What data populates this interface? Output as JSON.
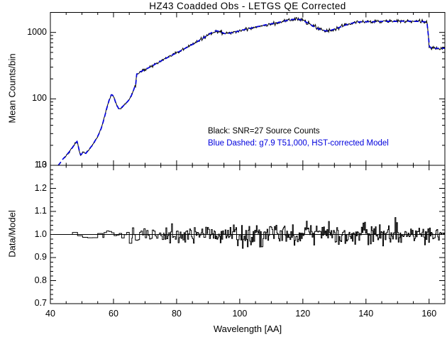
{
  "title": "HZ43 Coadded Obs - LETGS QE Corrected",
  "colors": {
    "data": "#000000",
    "model": "#0000dd",
    "background": "#ffffff",
    "axis": "#000000"
  },
  "chart_data": [
    {
      "type": "line",
      "panel": "spectrum",
      "title": "HZ43 Coadded Obs - LETGS QE Corrected",
      "ylabel": "Mean Counts/bin",
      "xscale": "linear",
      "yscale": "log",
      "xlim": [
        40,
        165
      ],
      "ylim": [
        10,
        2000
      ],
      "xticks": [
        40,
        60,
        80,
        100,
        120,
        140,
        160
      ],
      "xminor_step": 5,
      "yticks": [
        10,
        100,
        1000
      ],
      "ytick_labels": [
        "10",
        "100",
        "1000"
      ],
      "grid": false,
      "legend_position": "inside-lower-right",
      "annotations": [
        {
          "text": "Black: SNR=27 Source Counts",
          "color": "#000000"
        },
        {
          "text": "Blue Dashed: g7.9 T51,000, HST-corrected Model",
          "color": "#0000dd"
        }
      ],
      "series": [
        {
          "name": "SNR=27 source counts",
          "color": "#000000",
          "style": "solid-noisy",
          "x_start": 44.2,
          "x_end": 165,
          "bin_aa": 0.2,
          "noise_sigma_log": [
            [
              55,
              0.006
            ],
            [
              67,
              0.009
            ],
            [
              85,
              0.011
            ],
            [
              165,
              0.014
            ]
          ],
          "noise_seed": 42
        },
        {
          "name": "g7.9 T51,000, HST-corrected model",
          "color": "#0000dd",
          "style": "dashed",
          "x_start": 42.5,
          "x_end": 165
        }
      ],
      "model_points": [
        [
          42.5,
          10
        ],
        [
          43.2,
          11
        ],
        [
          44,
          12.5
        ],
        [
          45,
          14
        ],
        [
          46,
          16
        ],
        [
          47,
          18.5
        ],
        [
          47.9,
          21.5
        ],
        [
          48.5,
          23
        ],
        [
          49.1,
          17
        ],
        [
          49.6,
          14
        ],
        [
          50.4,
          16
        ],
        [
          51.2,
          15
        ],
        [
          52.3,
          17.5
        ],
        [
          53.3,
          20
        ],
        [
          54.3,
          24
        ],
        [
          55.3,
          29
        ],
        [
          56.3,
          38
        ],
        [
          57.1,
          52
        ],
        [
          57.8,
          70
        ],
        [
          58.6,
          95
        ],
        [
          59.4,
          118
        ],
        [
          60.1,
          108
        ],
        [
          60.8,
          84
        ],
        [
          61.8,
          69
        ],
        [
          62.8,
          76
        ],
        [
          63.8,
          84
        ],
        [
          64.8,
          95
        ],
        [
          65.8,
          115
        ],
        [
          66.7,
          150
        ],
        [
          67.0,
          158
        ],
        [
          67.3,
          235
        ],
        [
          68,
          248
        ],
        [
          69,
          262
        ],
        [
          70,
          275
        ],
        [
          72,
          308
        ],
        [
          74,
          350
        ],
        [
          76,
          392
        ],
        [
          78,
          440
        ],
        [
          80,
          492
        ],
        [
          82,
          552
        ],
        [
          84,
          622
        ],
        [
          86,
          700
        ],
        [
          88,
          800
        ],
        [
          90,
          915
        ],
        [
          91.3,
          1010
        ],
        [
          92.6,
          1060
        ],
        [
          94,
          1015
        ],
        [
          95.4,
          955
        ],
        [
          96.8,
          975
        ],
        [
          98.4,
          1010
        ],
        [
          100,
          1060
        ],
        [
          102,
          1115
        ],
        [
          104,
          1175
        ],
        [
          106,
          1235
        ],
        [
          108,
          1295
        ],
        [
          110,
          1345
        ],
        [
          112,
          1400
        ],
        [
          114,
          1475
        ],
        [
          116,
          1550
        ],
        [
          117.8,
          1590
        ],
        [
          119.3,
          1555
        ],
        [
          120.8,
          1450
        ],
        [
          122.2,
          1330
        ],
        [
          123.6,
          1215
        ],
        [
          125,
          1130
        ],
        [
          126.3,
          1075
        ],
        [
          127.6,
          1050
        ],
        [
          129,
          1080
        ],
        [
          130.8,
          1150
        ],
        [
          132.6,
          1245
        ],
        [
          134.4,
          1335
        ],
        [
          136.2,
          1400
        ],
        [
          138,
          1440
        ],
        [
          140,
          1450
        ],
        [
          142,
          1445
        ],
        [
          144,
          1460
        ],
        [
          146,
          1470
        ],
        [
          148,
          1465
        ],
        [
          150,
          1470
        ],
        [
          152,
          1480
        ],
        [
          154,
          1475
        ],
        [
          156,
          1465
        ],
        [
          157.8,
          1455
        ],
        [
          159.3,
          1440
        ],
        [
          159.7,
          1000
        ],
        [
          160,
          620
        ],
        [
          160.8,
          580
        ],
        [
          162,
          572
        ],
        [
          163.5,
          580
        ],
        [
          165,
          575
        ]
      ]
    },
    {
      "type": "line",
      "panel": "ratio",
      "xlabel": "Wavelength [AA]",
      "ylabel": "Data/Model",
      "xlim": [
        40,
        165
      ],
      "ylim": [
        0.7,
        1.3
      ],
      "xticks": [
        40,
        60,
        80,
        100,
        120,
        140,
        160
      ],
      "xminor_step": 5,
      "yticks": [
        0.7,
        0.8,
        0.9,
        1.0,
        1.1,
        1.2,
        1.3
      ],
      "yminor_step": 0.02,
      "grid": false,
      "reference_line": 1.0,
      "series": [
        {
          "name": "Data/Model ratio",
          "color": "#000000",
          "style": "histogram-noisy",
          "center": 1.0,
          "x_start": 47,
          "x_end": 165,
          "noise_bins": [
            [
              47,
              57,
              1.6,
              0.013
            ],
            [
              57,
              66,
              0.8,
              0.016
            ],
            [
              66,
              76,
              0.45,
              0.018
            ],
            [
              76,
              92,
              0.3,
              0.02
            ],
            [
              92,
              165,
              0.26,
              0.023
            ]
          ],
          "noise_seed": 1337
        }
      ]
    }
  ]
}
